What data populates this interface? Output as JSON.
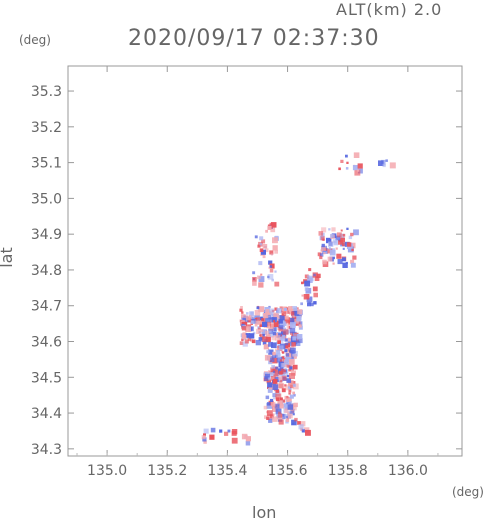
{
  "header": {
    "alt_label": "ALT(km) 2.0",
    "datetime": "2020/09/17 02:37:30"
  },
  "axes": {
    "x_label": "lon",
    "y_label": "lat",
    "x_unit": "(deg)",
    "y_unit": "(deg)",
    "x_ticks": [
      "135.0",
      "135.2",
      "135.4",
      "135.6",
      "135.8",
      "136.0"
    ],
    "y_ticks": [
      "35.3",
      "35.2",
      "35.1",
      "35.0",
      "34.9",
      "34.8",
      "34.7",
      "34.6",
      "34.5",
      "34.4",
      "34.3"
    ]
  },
  "map_data": {
    "xlim": [
      134.87,
      136.18
    ],
    "ylim": [
      34.28,
      35.37
    ],
    "colors": {
      "positive": "#e8505a",
      "negative": "#5566e0",
      "light_positive": "#f4aab0",
      "light_negative": "#aab4f2"
    },
    "echo_regions": [
      {
        "lon_min": 135.44,
        "lon_max": 135.64,
        "lat_min": 34.6,
        "lat_max": 34.7,
        "n": 260
      },
      {
        "lon_min": 135.52,
        "lon_max": 135.62,
        "lat_min": 34.38,
        "lat_max": 34.6,
        "n": 220
      },
      {
        "lon_min": 135.7,
        "lon_max": 135.82,
        "lat_min": 34.82,
        "lat_max": 34.92,
        "n": 70
      },
      {
        "lon_min": 135.48,
        "lon_max": 135.56,
        "lat_min": 34.76,
        "lat_max": 34.9,
        "n": 40
      },
      {
        "lon_min": 135.64,
        "lon_max": 135.7,
        "lat_min": 34.7,
        "lat_max": 34.82,
        "n": 25
      },
      {
        "lon_min": 135.31,
        "lon_max": 135.48,
        "lat_min": 34.32,
        "lat_max": 34.36,
        "n": 18
      },
      {
        "lon_min": 135.6,
        "lon_max": 135.68,
        "lat_min": 34.35,
        "lat_max": 34.39,
        "n": 10
      },
      {
        "lon_min": 135.76,
        "lon_max": 135.84,
        "lat_min": 35.08,
        "lat_max": 35.15,
        "n": 12
      },
      {
        "lon_min": 135.9,
        "lon_max": 135.94,
        "lat_min": 35.09,
        "lat_max": 35.11,
        "n": 6
      },
      {
        "lon_min": 135.52,
        "lon_max": 135.56,
        "lat_min": 34.91,
        "lat_max": 34.94,
        "n": 8
      }
    ]
  }
}
